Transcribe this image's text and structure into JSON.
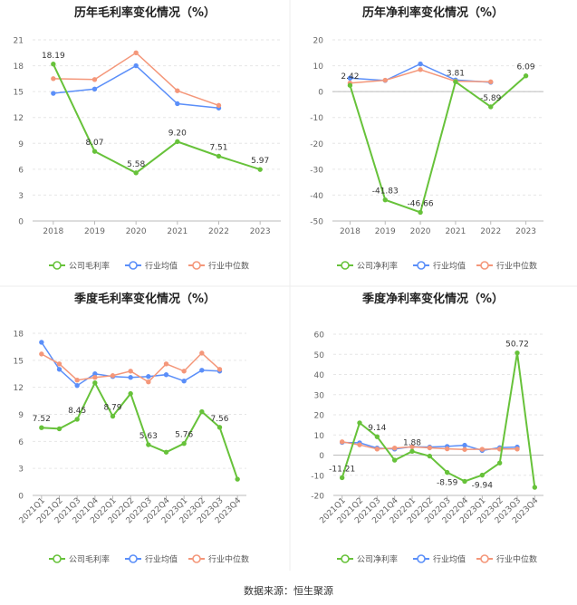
{
  "source_note": "数据来源：恒生聚源",
  "colors": {
    "company": "#67c23a",
    "avg": "#5b8ff9",
    "median": "#f4977a"
  },
  "chart_data": [
    {
      "id": "annual-gross",
      "type": "line",
      "title": "历年毛利率变化情况（%）",
      "categories": [
        "2018",
        "2019",
        "2020",
        "2021",
        "2022",
        "2023"
      ],
      "ylim": [
        0,
        21
      ],
      "yticks": [
        0,
        3,
        6,
        9,
        12,
        15,
        18,
        21
      ],
      "legend": [
        "公司毛利率",
        "行业均值",
        "行业中位数"
      ],
      "series": [
        {
          "name": "公司毛利率",
          "role": "company",
          "values": [
            18.19,
            8.07,
            5.58,
            9.2,
            7.51,
            5.97
          ],
          "labels": [
            "18.19",
            "8.07",
            "5.58",
            "9.20",
            "7.51",
            "5.97"
          ],
          "label_pos": [
            "above",
            "above",
            "above",
            "above",
            "above",
            "above"
          ]
        },
        {
          "name": "行业均值",
          "role": "avg",
          "values": [
            14.8,
            15.3,
            18.0,
            13.6,
            13.1,
            null
          ]
        },
        {
          "name": "行业中位数",
          "role": "median",
          "values": [
            16.5,
            16.4,
            19.5,
            15.1,
            13.4,
            null
          ]
        }
      ]
    },
    {
      "id": "annual-net",
      "type": "line",
      "title": "历年净利率变化情况（%）",
      "categories": [
        "2018",
        "2019",
        "2020",
        "2021",
        "2022",
        "2023"
      ],
      "ylim": [
        -50,
        20
      ],
      "yticks": [
        -50,
        -40,
        -30,
        -20,
        -10,
        0,
        10,
        20
      ],
      "legend": [
        "公司净利率",
        "行业均值",
        "行业中位数"
      ],
      "series": [
        {
          "name": "公司净利率",
          "role": "company",
          "values": [
            2.42,
            -41.83,
            -46.66,
            3.81,
            -5.89,
            6.09
          ],
          "labels": [
            "2.42",
            "-41.83",
            "-46.66",
            "3.81",
            "-5.89",
            "6.09"
          ],
          "label_pos": [
            "above",
            "above",
            "above",
            "above",
            "above",
            "above"
          ]
        },
        {
          "name": "行业均值",
          "role": "avg",
          "values": [
            5.2,
            4.3,
            10.7,
            4.5,
            3.6,
            null
          ]
        },
        {
          "name": "行业中位数",
          "role": "median",
          "values": [
            3.3,
            4.4,
            8.5,
            4.0,
            3.8,
            null
          ]
        }
      ]
    },
    {
      "id": "quarterly-gross",
      "type": "line",
      "title": "季度毛利率变化情况（%）",
      "categories": [
        "2021Q1",
        "2021Q2",
        "2021Q3",
        "2021Q4",
        "2022Q1",
        "2022Q2",
        "2022Q3",
        "2022Q4",
        "2023Q1",
        "2023Q2",
        "2023Q3",
        "2023Q4"
      ],
      "ylim": [
        0,
        18
      ],
      "yticks": [
        0,
        3,
        6,
        9,
        12,
        15,
        18
      ],
      "legend": [
        "公司毛利率",
        "行业均值",
        "行业中位数"
      ],
      "series": [
        {
          "name": "公司毛利率",
          "role": "company",
          "values": [
            7.52,
            7.4,
            8.45,
            12.5,
            8.79,
            11.3,
            5.63,
            4.8,
            5.76,
            9.3,
            7.56,
            1.8
          ],
          "labels": [
            "7.52",
            "",
            "8.45",
            "",
            "8.79",
            "",
            "5.63",
            "",
            "5.76",
            "",
            "7.56",
            ""
          ],
          "label_pos": [
            "above",
            "above",
            "above",
            "above",
            "above",
            "above",
            "above",
            "above",
            "above",
            "above",
            "above",
            "above"
          ]
        },
        {
          "name": "行业均值",
          "role": "avg",
          "values": [
            17.0,
            14.0,
            12.2,
            13.5,
            13.2,
            13.1,
            13.2,
            13.4,
            12.7,
            13.9,
            13.8,
            null
          ]
        },
        {
          "name": "行业中位数",
          "role": "median",
          "values": [
            15.7,
            14.6,
            12.8,
            13.1,
            13.3,
            13.8,
            12.6,
            14.6,
            13.8,
            15.8,
            14.0,
            null
          ]
        }
      ]
    },
    {
      "id": "quarterly-net",
      "type": "line",
      "title": "季度净利率变化情况（%）",
      "categories": [
        "2021Q1",
        "2021Q2",
        "2021Q3",
        "2021Q4",
        "2022Q1",
        "2022Q2",
        "2022Q3",
        "2022Q4",
        "2023Q1",
        "2023Q2",
        "2023Q3",
        "2023Q4"
      ],
      "ylim": [
        -20,
        60
      ],
      "yticks": [
        -20,
        -10,
        0,
        10,
        20,
        30,
        40,
        50,
        60
      ],
      "legend": [
        "公司净利率",
        "行业均值",
        "行业中位数"
      ],
      "series": [
        {
          "name": "公司净利率",
          "role": "company",
          "values": [
            -11.21,
            16.0,
            9.14,
            -2.5,
            1.88,
            -0.5,
            -8.59,
            -13.0,
            -9.94,
            -3.9,
            50.72,
            -16.0
          ],
          "labels": [
            "-11.21",
            "",
            "9.14",
            "",
            "1.88",
            "",
            "-8.59",
            "",
            "-9.94",
            "",
            "50.72",
            ""
          ],
          "label_pos": [
            "above",
            "above",
            "above",
            "above",
            "above",
            "above",
            "below",
            "above",
            "below",
            "above",
            "above",
            "above"
          ]
        },
        {
          "name": "行业均值",
          "role": "avg",
          "values": [
            6.3,
            6.1,
            3.5,
            3.0,
            4.2,
            4.0,
            4.3,
            4.9,
            2.3,
            3.7,
            4.0,
            null
          ]
        },
        {
          "name": "行业中位数",
          "role": "median",
          "values": [
            6.6,
            5.1,
            3.0,
            3.5,
            4.1,
            3.6,
            3.1,
            2.8,
            2.9,
            3.0,
            3.0,
            null
          ]
        }
      ]
    }
  ]
}
